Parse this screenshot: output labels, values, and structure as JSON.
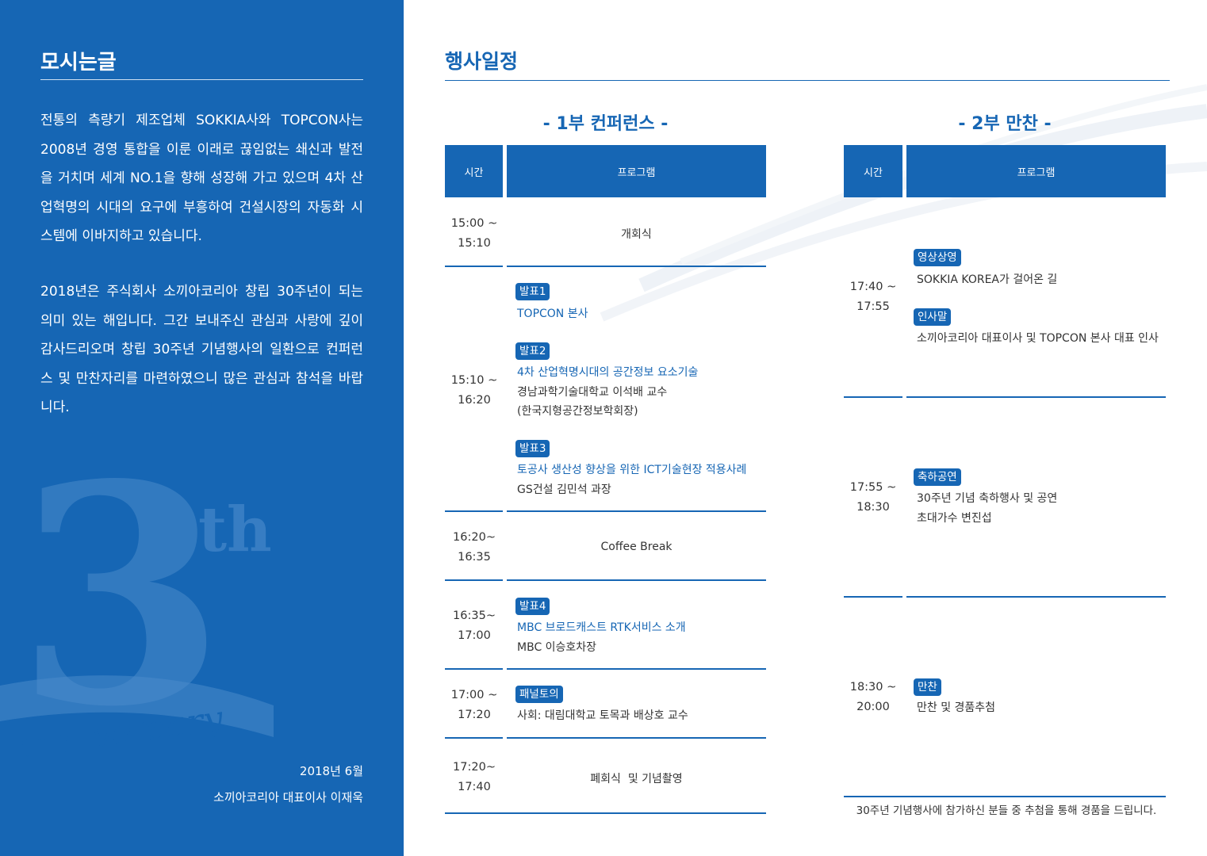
{
  "left": {
    "title": "모시는글",
    "para1": "전통의 측량기 제조업체 SOKKIA사와 TOPCON사는 2008년 경영 통합을 이룬 이래로 끊임없는 쇄신과 발전을 거치며 세계 NO.1을 향해 성장해 가고 있으며 4차 산업혁명의 시대의 요구에 부흥하여 건설시장의 자동화 시스템에 이바지하고 있습니다.",
    "para2": "2018년은 주식회사 소끼아코리아 창립 30주년이 되는 의미 있는 해입니다. 그간 보내주신 관심과 사랑에 깊이 감사드리오며 창립 30주년 기념행사의 일환으로 컨퍼런스 및 만찬자리를 마련하였으니 많은 관심과 참석을 바랍니다.",
    "date": "2018년 6월",
    "signature": "소끼아코리아 대표이사 이재욱",
    "logo_number": "3",
    "logo_th": "th",
    "logo_word": "anniversary"
  },
  "right": {
    "title": "행사일정",
    "part1_title": "- 1부 컨퍼런스 -",
    "part2_title": "- 2부 만찬 -",
    "col_time": "시간",
    "col_program": "프로그램",
    "part1": {
      "r1": {
        "time1": "15:00 ~",
        "time2": "15:10",
        "text": "개회식"
      },
      "r2": {
        "time1": "15:10 ~",
        "time2": "16:20",
        "b1": "발표1",
        "b1_title": "TOPCON 본사",
        "b2": "발표2",
        "b2_title": "4차 산업혁명시대의 공간정보 요소기술",
        "b2_l2": "경남과학기술대학교 이석배 교수",
        "b2_l3": "(한국지형공간정보학회장)",
        "b3": "발표3",
        "b3_title": "토공사 생산성 향상을 위한 ICT기술현장 적용사례",
        "b3_l2": "GS건설 김민석 과장"
      },
      "r3": {
        "time1": "16:20~",
        "time2": "16:35",
        "text": "Coffee Break"
      },
      "r4": {
        "time1": "16:35~",
        "time2": "17:00",
        "b": "발표4",
        "b_title": "MBC 브로드캐스트 RTK서비스 소개",
        "b_l2": "MBC 이승호차장"
      },
      "r5": {
        "time1": "17:00 ~",
        "time2": "17:20",
        "b": "패널토의",
        "b_l2": "사회: 대림대학교 토목과 배상호 교수"
      },
      "r6": {
        "time1": "17:20~",
        "time2": "17:40",
        "text": "폐회식  및 기념촬영"
      }
    },
    "part2": {
      "r1": {
        "time1": "17:40 ~",
        "time2": "17:55",
        "b1": "영상상영",
        "b1_l": "SOKKIA KOREA가 걸어온 길",
        "b2": "인사말",
        "b2_l": "소끼아코리아 대표이사 및 TOPCON 본사 대표 인사"
      },
      "r2": {
        "time1": "17:55 ~",
        "time2": "18:30",
        "b": "축하공연",
        "l1": "30주년 기념 축하행사 및 공연",
        "l2": "초대가수 변진섭"
      },
      "r3": {
        "time1": "18:30 ~",
        "time2": "20:00",
        "b": "만찬",
        "l1": "만찬 및 경품추첨"
      }
    },
    "footnote": "30주년 기념행사에 참가하신 분들 중 추첨을 통해 경품을 드립니다."
  },
  "colors": {
    "primary": "#1666b4",
    "text": "#333333"
  }
}
